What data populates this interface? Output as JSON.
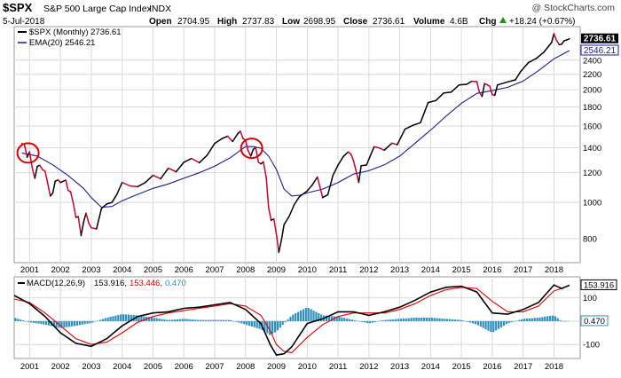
{
  "header": {
    "symbol": "$SPX",
    "name": "S&P 500 Large Cap Index",
    "exchange": "INDX",
    "watermark": "@ StockCharts.com",
    "date": "5-Jul-2018",
    "open_label": "Open",
    "open_value": "2704.95",
    "high_label": "High",
    "high_value": "2737.83",
    "low_label": "Low",
    "low_value": "2698.95",
    "close_label": "Close",
    "close_value": "2736.61",
    "volume_label": "Volume",
    "volume_value": "4.6B",
    "chg_label": "Chg",
    "chg_value": "+18.24 (+0.67%)",
    "chg_icon": "up-triangle-icon"
  },
  "legend": {
    "price": "$SPX (Monthly) 2736.61",
    "ema": "EMA(20) 2546.21",
    "macd_prefix": "MACD(12,26,9)",
    "macd_value": "153.916,",
    "signal_value": "153.446,",
    "hist_value": "0.470"
  },
  "badges": {
    "price": "2736.61",
    "ema": "2546.21",
    "macd": "153.916",
    "hist": "0.470"
  },
  "colors": {
    "price_line": "#000000",
    "decline_segment": "#cc0033",
    "ema_line": "#1c1c8c",
    "macd_line": "#000000",
    "signal_line": "#e00000",
    "histogram": "#2f8fbf",
    "highlight_circle": "#dd0000",
    "grid": "#d9d9d9"
  },
  "chart_data": [
    {
      "type": "line",
      "scale": "log",
      "series": [
        {
          "name": "$SPX (Monthly)",
          "x": [
            2000.75,
            2000.83,
            2000.92,
            2001.0,
            2001.08,
            2001.17,
            2001.25,
            2001.33,
            2001.42,
            2001.5,
            2001.58,
            2001.67,
            2001.75,
            2001.83,
            2001.92,
            2002.0,
            2002.17,
            2002.25,
            2002.33,
            2002.42,
            2002.5,
            2002.58,
            2002.67,
            2002.75,
            2002.83,
            2002.92,
            2003.0,
            2003.17,
            2003.33,
            2003.5,
            2003.67,
            2003.83,
            2004.0,
            2004.25,
            2004.5,
            2004.75,
            2005.0,
            2005.25,
            2005.5,
            2005.75,
            2006.0,
            2006.25,
            2006.5,
            2006.75,
            2007.0,
            2007.25,
            2007.42,
            2007.58,
            2007.75,
            2007.83,
            2007.92,
            2008.0,
            2008.08,
            2008.17,
            2008.25,
            2008.33,
            2008.42,
            2008.5,
            2008.58,
            2008.67,
            2008.75,
            2008.83,
            2008.92,
            2009.0,
            2009.08,
            2009.17,
            2009.25,
            2009.42,
            2009.58,
            2009.75,
            2010.0,
            2010.17,
            2010.33,
            2010.5,
            2010.67,
            2010.83,
            2011.0,
            2011.17,
            2011.33,
            2011.42,
            2011.5,
            2011.58,
            2011.67,
            2011.75,
            2011.92,
            2012.17,
            2012.33,
            2012.5,
            2012.75,
            2012.92,
            2013.17,
            2013.42,
            2013.67,
            2013.92,
            2014.17,
            2014.42,
            2014.67,
            2014.92,
            2015.17,
            2015.33,
            2015.5,
            2015.58,
            2015.67,
            2015.75,
            2015.92,
            2016.0,
            2016.08,
            2016.17,
            2016.5,
            2016.75,
            2016.92,
            2017.17,
            2017.42,
            2017.67,
            2017.92,
            2018.0,
            2018.08,
            2018.17,
            2018.25,
            2018.33,
            2018.42,
            2018.5
          ],
          "values": [
            1436,
            1429,
            1320,
            1366,
            1240,
            1160,
            1249,
            1256,
            1224,
            1211,
            1134,
            1040,
            1059,
            1139,
            1148,
            1130,
            1147,
            1077,
            1067,
            990,
            912,
            916,
            815,
            885,
            936,
            880,
            855,
            849,
            964,
            990,
            1000,
            1051,
            1131,
            1107,
            1101,
            1130,
            1181,
            1157,
            1234,
            1207,
            1280,
            1310,
            1276,
            1335,
            1438,
            1482,
            1503,
            1455,
            1527,
            1549,
            1481,
            1468,
            1378,
            1330,
            1385,
            1400,
            1280,
            1267,
            1283,
            1166,
            969,
            896,
            903,
            825,
            735,
            797,
            872,
            919,
            987,
            1036,
            1073,
            1115,
            1169,
            1030,
            1049,
            1180,
            1258,
            1326,
            1364,
            1345,
            1292,
            1219,
            1131,
            1253,
            1258,
            1408,
            1398,
            1379,
            1440,
            1426,
            1569,
            1606,
            1633,
            1848,
            1872,
            1960,
            1972,
            2059,
            2068,
            2107,
            2104,
            1972,
            1920,
            2079,
            2044,
            1940,
            1932,
            2060,
            2099,
            2126,
            2238,
            2363,
            2423,
            2519,
            2674,
            2824,
            2713,
            2641,
            2648,
            2705,
            2718,
            2737
          ]
        },
        {
          "name": "EMA(20)",
          "x": [
            2000.75,
            2001.25,
            2001.75,
            2002.25,
            2002.75,
            2003.0,
            2003.33,
            2003.67,
            2004.0,
            2004.5,
            2005.0,
            2005.5,
            2006.0,
            2006.5,
            2007.0,
            2007.5,
            2008.0,
            2008.25,
            2008.5,
            2008.75,
            2009.0,
            2009.25,
            2009.5,
            2009.75,
            2010.0,
            2010.5,
            2011.0,
            2011.5,
            2012.0,
            2012.5,
            2013.0,
            2013.5,
            2014.0,
            2014.5,
            2015.0,
            2015.5,
            2016.0,
            2016.5,
            2017.0,
            2017.5,
            2018.0,
            2018.5
          ],
          "values": [
            1355,
            1330,
            1260,
            1180,
            1090,
            1030,
            970,
            975,
            1010,
            1050,
            1090,
            1120,
            1160,
            1200,
            1250,
            1315,
            1410,
            1410,
            1395,
            1330,
            1225,
            1085,
            1040,
            1045,
            1060,
            1085,
            1130,
            1190,
            1215,
            1260,
            1330,
            1440,
            1560,
            1700,
            1840,
            1955,
            1990,
            2030,
            2110,
            2250,
            2420,
            2546
          ]
        }
      ],
      "ylim": [
        690,
        2950
      ],
      "yticks": [
        800,
        1000,
        1200,
        1400,
        1600,
        1800,
        2000,
        2200,
        2400
      ],
      "x_tick_labels": [
        "2001",
        "2002",
        "2003",
        "2004",
        "2005",
        "2006",
        "2007",
        "2008",
        "2009",
        "2010",
        "2011",
        "2012",
        "2013",
        "2014",
        "2015",
        "2016",
        "2017",
        "2018"
      ],
      "annotations": [
        {
          "type": "circle",
          "x": 2000.95,
          "y": 1355
        },
        {
          "type": "circle",
          "x": 2008.2,
          "y": 1395
        }
      ],
      "grid": true
    },
    {
      "type": "line",
      "series": [
        {
          "name": "MACD(12,26,9)",
          "x": [
            2000.5,
            2001.0,
            2001.5,
            2002.0,
            2002.5,
            2003.0,
            2003.5,
            2004.0,
            2004.5,
            2005.0,
            2005.5,
            2006.0,
            2006.5,
            2007.0,
            2007.5,
            2008.0,
            2008.5,
            2008.8,
            2009.0,
            2009.25,
            2009.5,
            2010.0,
            2010.5,
            2011.0,
            2011.5,
            2012.0,
            2012.5,
            2013.0,
            2013.5,
            2014.0,
            2014.5,
            2015.0,
            2015.5,
            2016.0,
            2016.5,
            2017.0,
            2017.5,
            2018.0,
            2018.25,
            2018.5
          ],
          "values": [
            110,
            75,
            20,
            -50,
            -95,
            -108,
            -75,
            -20,
            20,
            35,
            40,
            55,
            60,
            70,
            80,
            50,
            -10,
            -100,
            -145,
            -140,
            -110,
            -10,
            10,
            40,
            40,
            25,
            40,
            60,
            90,
            125,
            145,
            150,
            125,
            35,
            30,
            50,
            80,
            155,
            140,
            154
          ]
        },
        {
          "name": "Signal",
          "x": [
            2000.5,
            2001.0,
            2001.5,
            2002.0,
            2002.5,
            2003.0,
            2003.5,
            2004.0,
            2004.5,
            2005.0,
            2005.5,
            2006.0,
            2006.5,
            2007.0,
            2007.5,
            2008.0,
            2008.5,
            2008.8,
            2009.0,
            2009.25,
            2009.5,
            2010.0,
            2010.5,
            2011.0,
            2011.5,
            2012.0,
            2012.5,
            2013.0,
            2013.5,
            2014.0,
            2014.5,
            2015.0,
            2015.5,
            2016.0,
            2016.5,
            2017.0,
            2017.5,
            2018.0,
            2018.25,
            2018.5
          ],
          "values": [
            95,
            80,
            35,
            -20,
            -75,
            -100,
            -90,
            -50,
            -5,
            20,
            35,
            45,
            55,
            65,
            75,
            65,
            25,
            -40,
            -100,
            -130,
            -135,
            -70,
            -15,
            20,
            35,
            35,
            35,
            50,
            75,
            110,
            135,
            145,
            140,
            85,
            40,
            40,
            65,
            130,
            140,
            153
          ]
        },
        {
          "name": "Histogram",
          "x": [
            2000.5,
            2001.0,
            2001.5,
            2002.0,
            2002.5,
            2003.0,
            2003.5,
            2004.0,
            2004.5,
            2005.0,
            2005.5,
            2006.0,
            2006.5,
            2007.0,
            2007.5,
            2008.0,
            2008.5,
            2008.8,
            2009.0,
            2009.25,
            2009.5,
            2010.0,
            2010.5,
            2011.0,
            2011.5,
            2012.0,
            2012.5,
            2013.0,
            2013.5,
            2014.0,
            2014.5,
            2015.0,
            2015.5,
            2016.0,
            2016.5,
            2017.0,
            2017.5,
            2018.0,
            2018.25,
            2018.5
          ],
          "values": [
            15,
            -5,
            -15,
            -30,
            -20,
            -8,
            15,
            30,
            25,
            15,
            5,
            10,
            5,
            5,
            5,
            -15,
            -35,
            -60,
            -45,
            -10,
            25,
            60,
            25,
            20,
            5,
            -10,
            5,
            10,
            15,
            15,
            10,
            5,
            -15,
            -50,
            -10,
            10,
            15,
            25,
            0,
            0.47
          ]
        }
      ],
      "ylim": [
        -160,
        190
      ],
      "yticks": [
        -100,
        0,
        100
      ],
      "x_tick_labels": [
        "2001",
        "2002",
        "2003",
        "2004",
        "2005",
        "2006",
        "2007",
        "2008",
        "2009",
        "2010",
        "2011",
        "2012",
        "2013",
        "2014",
        "2015",
        "2016",
        "2017",
        "2018"
      ],
      "grid": true
    }
  ]
}
